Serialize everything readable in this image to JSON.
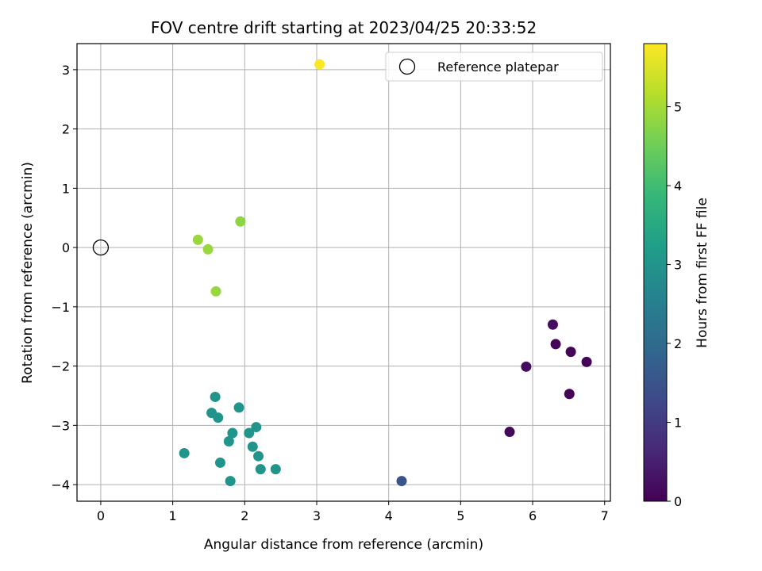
{
  "chart_data": {
    "type": "scatter",
    "title": "FOV centre drift starting at 2023/04/25 20:33:52",
    "xlabel": "Angular distance from reference (arcmin)",
    "ylabel": "Rotation from reference (arcmin)",
    "xlim": [
      -0.33,
      7.08
    ],
    "ylim": [
      -4.28,
      3.44
    ],
    "xticks": [
      0,
      1,
      2,
      3,
      4,
      5,
      6,
      7
    ],
    "yticks": [
      -4,
      -3,
      -2,
      -1,
      0,
      1,
      2,
      3
    ],
    "grid": true,
    "legend": {
      "placement": "top-right",
      "entries": [
        "Reference platepar"
      ]
    },
    "reference_point": {
      "x": 0,
      "y": 0,
      "marker": "open-circle",
      "color": "#000000"
    },
    "colorbar": {
      "label": "Hours from first FF file",
      "range": [
        0,
        5.8
      ],
      "ticks": [
        0,
        1,
        2,
        3,
        4,
        5
      ],
      "colormap": "viridis"
    },
    "series": [
      {
        "points": [
          {
            "x": 6.28,
            "y": -1.3,
            "c": 0.2
          },
          {
            "x": 6.32,
            "y": -1.63,
            "c": 0.05
          },
          {
            "x": 6.53,
            "y": -1.76,
            "c": 0.05
          },
          {
            "x": 6.75,
            "y": -1.93,
            "c": 0.05
          },
          {
            "x": 5.91,
            "y": -2.01,
            "c": 0.2
          },
          {
            "x": 6.51,
            "y": -2.47,
            "c": 0.05
          },
          {
            "x": 5.68,
            "y": -3.11,
            "c": 0.1
          },
          {
            "x": 4.18,
            "y": -3.94,
            "c": 1.5
          },
          {
            "x": 1.59,
            "y": -2.52,
            "c": 3.0
          },
          {
            "x": 1.54,
            "y": -2.79,
            "c": 3.0
          },
          {
            "x": 1.63,
            "y": -2.87,
            "c": 3.0
          },
          {
            "x": 1.92,
            "y": -2.7,
            "c": 3.0
          },
          {
            "x": 2.16,
            "y": -3.03,
            "c": 3.0
          },
          {
            "x": 2.06,
            "y": -3.13,
            "c": 3.0
          },
          {
            "x": 1.83,
            "y": -3.13,
            "c": 3.0
          },
          {
            "x": 1.78,
            "y": -3.27,
            "c": 3.0
          },
          {
            "x": 2.11,
            "y": -3.36,
            "c": 3.0
          },
          {
            "x": 2.19,
            "y": -3.52,
            "c": 3.0
          },
          {
            "x": 1.16,
            "y": -3.47,
            "c": 3.0
          },
          {
            "x": 1.66,
            "y": -3.63,
            "c": 3.0
          },
          {
            "x": 2.22,
            "y": -3.74,
            "c": 3.0
          },
          {
            "x": 2.43,
            "y": -3.74,
            "c": 3.0
          },
          {
            "x": 1.8,
            "y": -3.94,
            "c": 3.0
          },
          {
            "x": 1.94,
            "y": 0.44,
            "c": 4.8
          },
          {
            "x": 1.35,
            "y": 0.13,
            "c": 4.9
          },
          {
            "x": 1.49,
            "y": -0.03,
            "c": 4.9
          },
          {
            "x": 1.6,
            "y": -0.74,
            "c": 4.9
          },
          {
            "x": 3.04,
            "y": 3.09,
            "c": 5.8
          }
        ]
      }
    ]
  }
}
